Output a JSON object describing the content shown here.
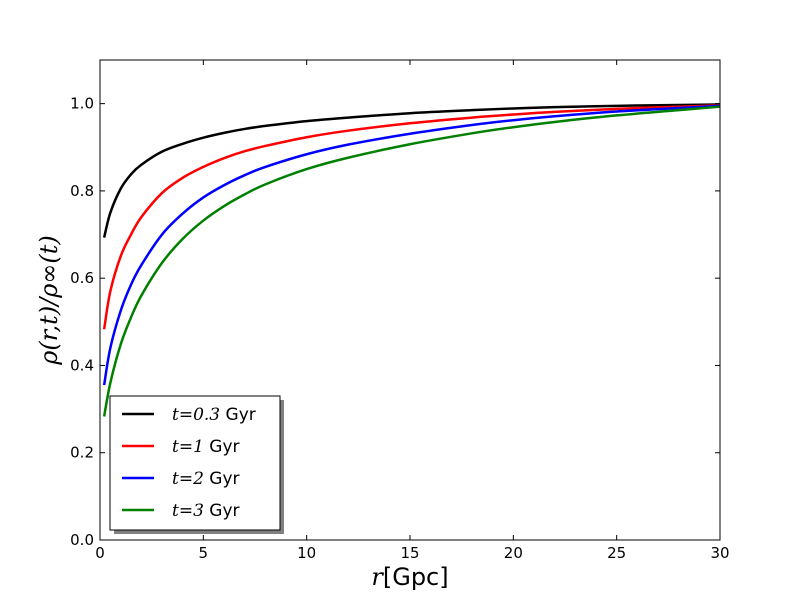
{
  "chart_data": {
    "type": "line",
    "title": "",
    "xlabel": {
      "math": "r",
      "text": "[Gpc]"
    },
    "ylabel": "ρ(r,t)/ρ∞(t)",
    "xlim": [
      0,
      30
    ],
    "ylim": [
      0,
      1.1
    ],
    "x_ticks": [
      0,
      5,
      10,
      15,
      20,
      25,
      30
    ],
    "x_tick_labels": [
      "0",
      "5",
      "10",
      "15",
      "20",
      "25",
      "30"
    ],
    "y_ticks": [
      0.0,
      0.2,
      0.4,
      0.6,
      0.8,
      1.0
    ],
    "y_tick_labels": [
      "0.0",
      "0.2",
      "0.4",
      "0.6",
      "0.8",
      "1.0"
    ],
    "grid": false,
    "legend_position": "lower-left",
    "series": [
      {
        "name": "t=0.3 Gyr",
        "name_math": "t",
        "name_value": "=0.3",
        "name_unit": "Gyr",
        "color": "#000000",
        "x": [
          0.2,
          0.5,
          1,
          1.5,
          2,
          3,
          4,
          5,
          6,
          7,
          8,
          10,
          12,
          15,
          18,
          20,
          22,
          25,
          28,
          30
        ],
        "y": [
          0.693,
          0.75,
          0.805,
          0.838,
          0.86,
          0.89,
          0.908,
          0.922,
          0.933,
          0.942,
          0.949,
          0.96,
          0.968,
          0.978,
          0.985,
          0.989,
          0.992,
          0.995,
          0.997,
          0.998
        ]
      },
      {
        "name": "t=1 Gyr",
        "name_math": "t",
        "name_value": "=1",
        "name_unit": "Gyr",
        "color": "#ff0000",
        "x": [
          0.2,
          0.5,
          1,
          1.5,
          2,
          3,
          4,
          5,
          6,
          7,
          8,
          10,
          12,
          15,
          18,
          20,
          22,
          25,
          28,
          30
        ],
        "y": [
          0.483,
          0.57,
          0.65,
          0.7,
          0.74,
          0.795,
          0.83,
          0.855,
          0.875,
          0.891,
          0.903,
          0.923,
          0.938,
          0.955,
          0.968,
          0.975,
          0.981,
          0.988,
          0.993,
          0.996
        ]
      },
      {
        "name": "t=2 Gyr",
        "name_math": "t",
        "name_value": "=2",
        "name_unit": "Gyr",
        "color": "#0000ff",
        "x": [
          0.2,
          0.5,
          1,
          1.5,
          2,
          3,
          4,
          5,
          6,
          7,
          8,
          10,
          12,
          15,
          18,
          20,
          22,
          25,
          28,
          30
        ],
        "y": [
          0.355,
          0.44,
          0.525,
          0.585,
          0.63,
          0.7,
          0.748,
          0.785,
          0.813,
          0.836,
          0.855,
          0.884,
          0.906,
          0.931,
          0.951,
          0.962,
          0.971,
          0.982,
          0.99,
          0.995
        ]
      },
      {
        "name": "t=3 Gyr",
        "name_math": "t",
        "name_value": "=3",
        "name_unit": "Gyr",
        "color": "#008000",
        "x": [
          0.2,
          0.5,
          1,
          1.5,
          2,
          3,
          4,
          5,
          6,
          7,
          8,
          10,
          12,
          15,
          18,
          20,
          22,
          25,
          28,
          30
        ],
        "y": [
          0.283,
          0.36,
          0.448,
          0.51,
          0.56,
          0.635,
          0.69,
          0.732,
          0.765,
          0.792,
          0.815,
          0.85,
          0.876,
          0.907,
          0.932,
          0.946,
          0.958,
          0.973,
          0.985,
          0.993
        ]
      }
    ]
  }
}
